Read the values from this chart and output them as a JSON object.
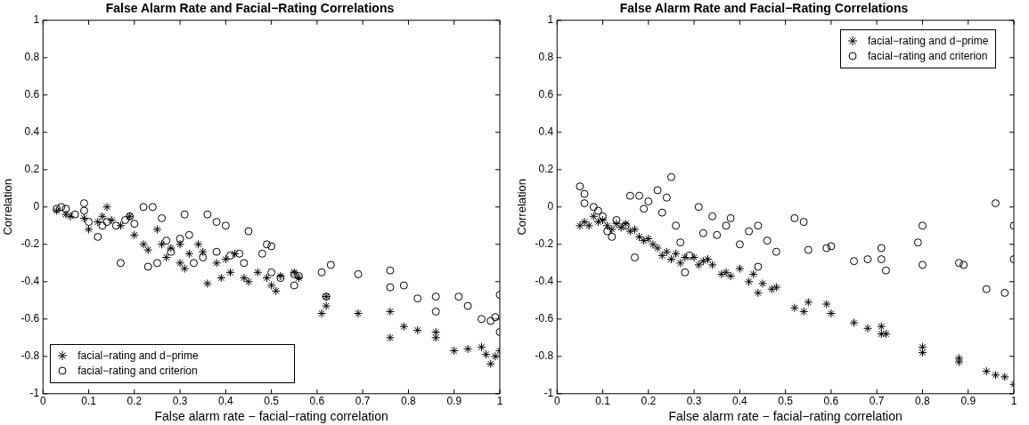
{
  "chart_data": [
    {
      "type": "scatter",
      "title": "False Alarm Rate and Facial−Rating Correlations",
      "xlabel": "False alarm rate − facial−rating correlation",
      "ylabel": "Correlation",
      "xlim": [
        0,
        1
      ],
      "ylim": [
        -1,
        1
      ],
      "xticks": [
        0,
        0.1,
        0.2,
        0.3,
        0.4,
        0.5,
        0.6,
        0.7,
        0.8,
        0.9,
        1
      ],
      "yticks": [
        -1,
        -0.8,
        -0.6,
        -0.4,
        -0.2,
        0,
        0.2,
        0.4,
        0.6,
        0.8,
        1
      ],
      "grid": false,
      "legend": "bottom left",
      "series": [
        {
          "name": "facial−rating and d−prime",
          "color": "#000000",
          "marker": "cross",
          "x": [
            0.03,
            0.05,
            0.06,
            0.09,
            0.1,
            0.12,
            0.13,
            0.14,
            0.15,
            0.17,
            0.19,
            0.2,
            0.22,
            0.23,
            0.25,
            0.26,
            0.27,
            0.28,
            0.3,
            0.3,
            0.31,
            0.32,
            0.34,
            0.35,
            0.36,
            0.38,
            0.39,
            0.4,
            0.41,
            0.42,
            0.44,
            0.45,
            0.47,
            0.49,
            0.5,
            0.51,
            0.52,
            0.55,
            0.56,
            0.61,
            0.62,
            0.62,
            0.69,
            0.76,
            0.76,
            0.79,
            0.82,
            0.86,
            0.86,
            0.9,
            0.93,
            0.96,
            0.97,
            0.98,
            0.99,
            1.0
          ],
          "values": [
            -0.02,
            -0.04,
            -0.05,
            -0.06,
            -0.12,
            -0.08,
            -0.05,
            0.0,
            -0.07,
            -0.1,
            -0.05,
            -0.15,
            -0.2,
            -0.23,
            -0.12,
            -0.2,
            -0.27,
            -0.22,
            -0.3,
            -0.2,
            -0.33,
            -0.25,
            -0.2,
            -0.24,
            -0.41,
            -0.3,
            -0.38,
            -0.28,
            -0.35,
            -0.25,
            -0.38,
            -0.4,
            -0.35,
            -0.38,
            -0.42,
            -0.45,
            -0.37,
            -0.35,
            -0.38,
            -0.57,
            -0.53,
            -0.48,
            -0.57,
            -0.56,
            -0.7,
            -0.64,
            -0.66,
            -0.67,
            -0.7,
            -0.77,
            -0.76,
            -0.75,
            -0.79,
            -0.84,
            -0.8,
            -0.77
          ]
        },
        {
          "name": "facial−rating and criterion",
          "color": "#000000",
          "marker": "circle",
          "x": [
            0.03,
            0.04,
            0.05,
            0.07,
            0.09,
            0.09,
            0.1,
            0.12,
            0.13,
            0.14,
            0.16,
            0.17,
            0.18,
            0.19,
            0.2,
            0.22,
            0.23,
            0.24,
            0.25,
            0.26,
            0.27,
            0.28,
            0.3,
            0.31,
            0.32,
            0.33,
            0.35,
            0.36,
            0.38,
            0.38,
            0.4,
            0.41,
            0.43,
            0.44,
            0.45,
            0.48,
            0.49,
            0.5,
            0.5,
            0.52,
            0.55,
            0.55,
            0.56,
            0.61,
            0.62,
            0.63,
            0.69,
            0.76,
            0.76,
            0.79,
            0.82,
            0.86,
            0.86,
            0.91,
            0.93,
            0.96,
            0.98,
            0.99,
            1.0,
            1.0
          ],
          "values": [
            -0.01,
            0.0,
            -0.01,
            -0.04,
            0.02,
            -0.02,
            -0.08,
            -0.16,
            -0.1,
            -0.08,
            -0.1,
            -0.3,
            -0.07,
            -0.05,
            -0.09,
            0.0,
            -0.32,
            0.0,
            -0.3,
            -0.06,
            -0.18,
            -0.24,
            -0.17,
            -0.04,
            -0.15,
            -0.3,
            -0.27,
            -0.04,
            -0.08,
            -0.24,
            -0.1,
            -0.26,
            -0.25,
            -0.3,
            -0.13,
            -0.25,
            -0.2,
            -0.21,
            -0.35,
            -0.38,
            -0.36,
            -0.42,
            -0.37,
            -0.35,
            -0.48,
            -0.31,
            -0.36,
            -0.34,
            -0.43,
            -0.42,
            -0.49,
            -0.48,
            -0.56,
            -0.48,
            -0.53,
            -0.6,
            -0.61,
            -0.59,
            -0.47,
            -0.67
          ]
        }
      ]
    },
    {
      "type": "scatter",
      "title": "False Alarm Rate and Facial−Rating Correlations",
      "xlabel": "False alarm rate − facial−rating correlation",
      "ylabel": "Correlation",
      "xlim": [
        0,
        1
      ],
      "ylim": [
        -1,
        1
      ],
      "xticks": [
        0,
        0.1,
        0.2,
        0.3,
        0.4,
        0.5,
        0.6,
        0.7,
        0.8,
        0.9,
        1
      ],
      "yticks": [
        -1,
        -0.8,
        -0.6,
        -0.4,
        -0.2,
        0,
        0.2,
        0.4,
        0.6,
        0.8,
        1
      ],
      "grid": false,
      "legend": "top right",
      "series": [
        {
          "name": "facial−rating and d−prime",
          "color": "#000000",
          "marker": "cross",
          "x": [
            0.05,
            0.06,
            0.07,
            0.08,
            0.09,
            0.1,
            0.11,
            0.12,
            0.13,
            0.14,
            0.15,
            0.16,
            0.17,
            0.18,
            0.19,
            0.2,
            0.21,
            0.22,
            0.23,
            0.24,
            0.25,
            0.26,
            0.27,
            0.28,
            0.3,
            0.31,
            0.32,
            0.33,
            0.34,
            0.36,
            0.37,
            0.38,
            0.4,
            0.42,
            0.43,
            0.44,
            0.45,
            0.47,
            0.48,
            0.52,
            0.54,
            0.55,
            0.59,
            0.6,
            0.65,
            0.68,
            0.71,
            0.71,
            0.72,
            0.8,
            0.8,
            0.88,
            0.88,
            0.94,
            0.96,
            0.98,
            1.0
          ],
          "values": [
            -0.1,
            -0.08,
            -0.1,
            -0.05,
            -0.08,
            -0.07,
            -0.1,
            -0.12,
            -0.09,
            -0.11,
            -0.09,
            -0.13,
            -0.12,
            -0.16,
            -0.18,
            -0.17,
            -0.2,
            -0.22,
            -0.26,
            -0.24,
            -0.28,
            -0.25,
            -0.3,
            -0.27,
            -0.27,
            -0.31,
            -0.29,
            -0.28,
            -0.31,
            -0.36,
            -0.35,
            -0.37,
            -0.33,
            -0.4,
            -0.36,
            -0.46,
            -0.41,
            -0.44,
            -0.43,
            -0.54,
            -0.56,
            -0.51,
            -0.52,
            -0.57,
            -0.62,
            -0.65,
            -0.64,
            -0.68,
            -0.68,
            -0.75,
            -0.78,
            -0.81,
            -0.83,
            -0.88,
            -0.9,
            -0.91,
            -0.95
          ]
        },
        {
          "name": "facial−rating and criterion",
          "color": "#000000",
          "marker": "circle",
          "x": [
            0.05,
            0.06,
            0.06,
            0.08,
            0.09,
            0.1,
            0.11,
            0.12,
            0.13,
            0.15,
            0.16,
            0.17,
            0.18,
            0.19,
            0.2,
            0.22,
            0.23,
            0.24,
            0.25,
            0.26,
            0.27,
            0.28,
            0.29,
            0.31,
            0.32,
            0.34,
            0.35,
            0.37,
            0.38,
            0.4,
            0.42,
            0.44,
            0.44,
            0.46,
            0.48,
            0.52,
            0.54,
            0.55,
            0.59,
            0.6,
            0.65,
            0.68,
            0.71,
            0.71,
            0.72,
            0.79,
            0.8,
            0.8,
            0.88,
            0.89,
            0.94,
            0.96,
            0.98,
            1.0,
            1.0
          ],
          "values": [
            0.11,
            0.07,
            0.02,
            0.0,
            -0.02,
            -0.05,
            -0.13,
            -0.16,
            -0.07,
            -0.1,
            0.06,
            -0.27,
            0.06,
            -0.01,
            0.03,
            0.09,
            -0.03,
            0.05,
            0.16,
            -0.1,
            -0.19,
            -0.35,
            -0.26,
            0.0,
            -0.14,
            -0.05,
            -0.15,
            -0.1,
            -0.06,
            -0.2,
            -0.13,
            -0.32,
            -0.1,
            -0.18,
            -0.24,
            -0.06,
            -0.08,
            -0.23,
            -0.22,
            -0.21,
            -0.29,
            -0.28,
            -0.22,
            -0.28,
            -0.34,
            -0.19,
            -0.1,
            -0.31,
            -0.3,
            -0.31,
            -0.44,
            0.02,
            -0.46,
            -0.1,
            -0.28
          ]
        }
      ]
    }
  ]
}
